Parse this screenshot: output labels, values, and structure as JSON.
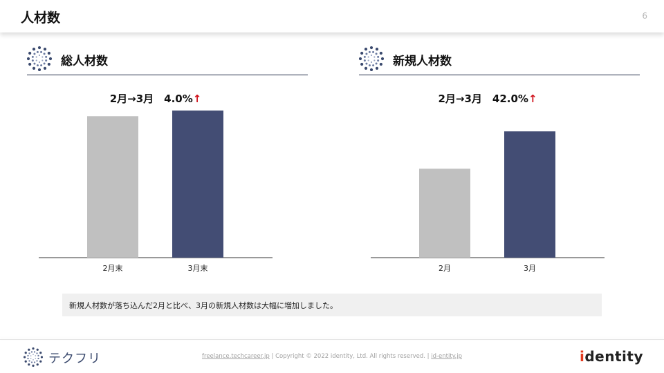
{
  "header": {
    "title": "人材数",
    "page_number": "6"
  },
  "sections": [
    {
      "title": "総人材数",
      "icon": "dotted-circle-icon",
      "change_label": "2月→3月　4.0%",
      "change_arrow": "↑",
      "chart_data": {
        "type": "bar",
        "categories": [
          "2月末",
          "3月末"
        ],
        "values": [
          100,
          104
        ],
        "ylim": [
          0,
          105
        ],
        "colors": [
          "#c0c0c0",
          "#434d74"
        ],
        "xlabel": "",
        "ylabel": "",
        "grid": false
      }
    },
    {
      "title": "新規人材数",
      "icon": "dotted-circle-icon",
      "change_label": "2月→3月　42.0%",
      "change_arrow": "↑",
      "chart_data": {
        "type": "bar",
        "categories": [
          "2月",
          "3月"
        ],
        "values": [
          100,
          142
        ],
        "ylim": [
          0,
          167
        ],
        "colors": [
          "#c0c0c0",
          "#434d74"
        ],
        "xlabel": "",
        "ylabel": "",
        "grid": false
      }
    }
  ],
  "note": "新規人材数が落ち込んだ2月と比べ、3月の新規人材数は大幅に増加しました。",
  "footer": {
    "logo_text": "テクフリ",
    "link_site": "freelance.techcareer.jp",
    "copyright": "Copyright © 2022 identity, Ltd. All rights reserved.",
    "link_company": "id-entity.jp",
    "separator": "|",
    "brand_prefix": "i",
    "brand_rest": "dentity"
  },
  "colors": {
    "accent": "#434d74",
    "muted_bar": "#c0c0c0",
    "up_arrow": "#d0121b",
    "brand_i": "#e23a1e"
  }
}
